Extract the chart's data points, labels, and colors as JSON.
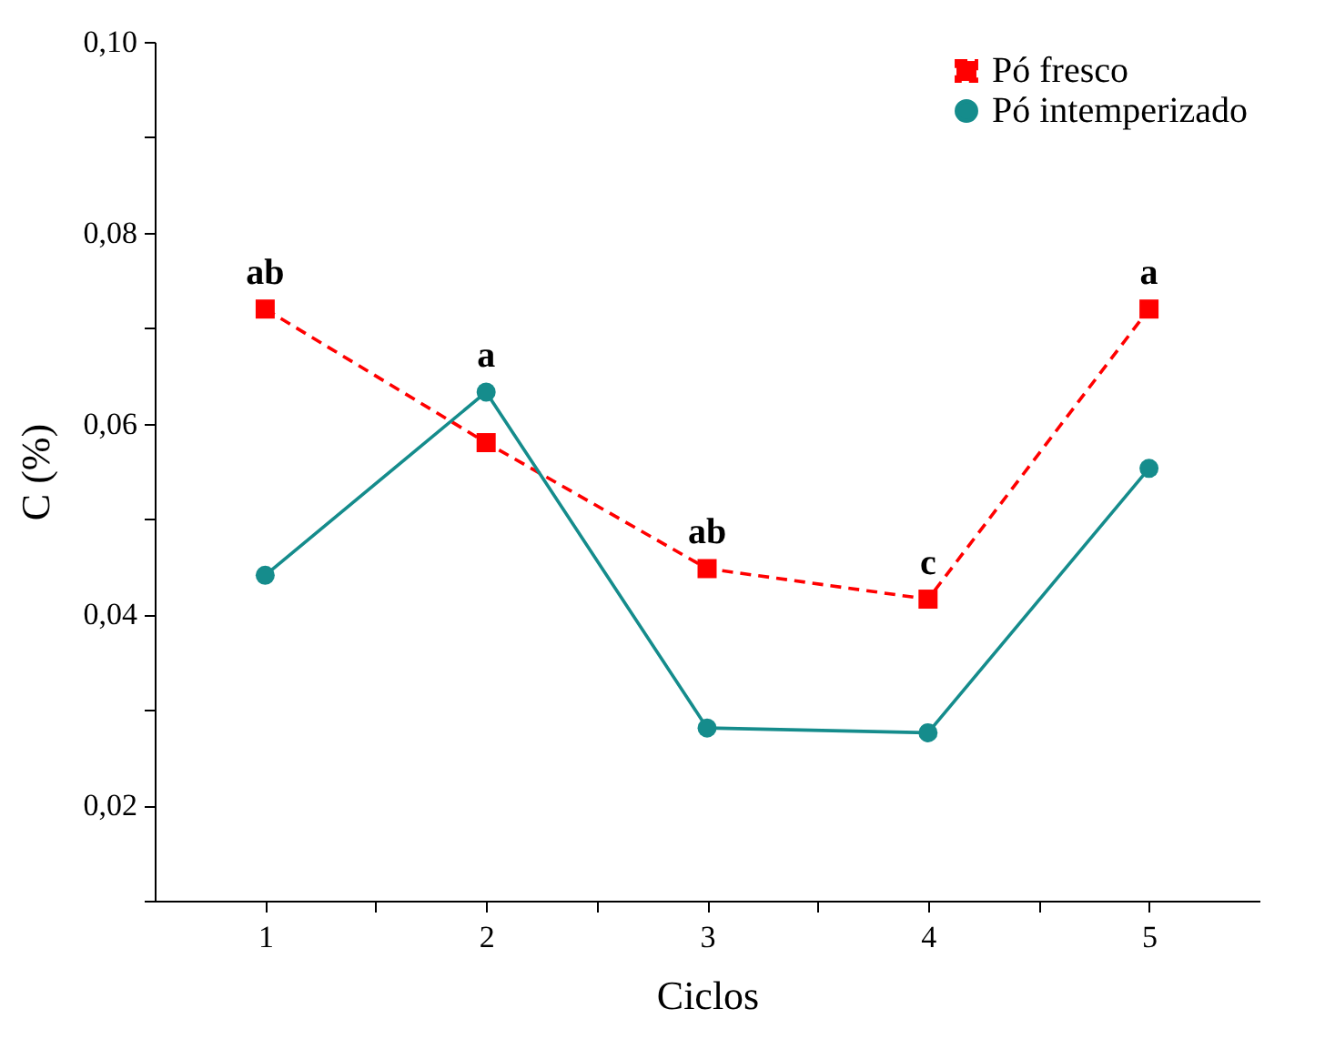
{
  "chart_data": {
    "type": "line",
    "xlabel": "Ciclos",
    "ylabel": "C (%)",
    "x": [
      1,
      2,
      3,
      4,
      5
    ],
    "series": [
      {
        "name": "Pó fresco",
        "color": "#ff0000",
        "values": [
          0.072,
          0.058,
          0.0448,
          0.0416,
          0.072
        ],
        "marker": "square",
        "line_style": "dashed"
      },
      {
        "name": "Pó intemperizado",
        "color": "#158c8c",
        "values": [
          0.0441,
          0.0633,
          0.0281,
          0.0276,
          0.0553
        ],
        "marker": "circle",
        "line_style": "solid"
      }
    ],
    "xlim": [
      0.5,
      5.5
    ],
    "xticks": [
      1,
      {
        "value": 1.5,
        "label": null
      },
      2,
      {
        "value": 2.5,
        "label": null
      },
      3,
      {
        "value": 3.5,
        "label": null
      },
      4,
      {
        "value": 4.5,
        "label": null
      },
      5
    ],
    "ylim": [
      0.01,
      0.1
    ],
    "yticks": [
      {
        "value": 0.01,
        "label": null
      },
      {
        "value": 0.02,
        "label": "0,02"
      },
      {
        "value": 0.03,
        "label": null
      },
      {
        "value": 0.04,
        "label": "0,04"
      },
      {
        "value": 0.05,
        "label": null
      },
      {
        "value": 0.06,
        "label": "0,06"
      },
      {
        "value": 0.07,
        "label": null
      },
      {
        "value": 0.08,
        "label": "0,08"
      },
      {
        "value": 0.09,
        "label": null
      },
      {
        "value": 0.1,
        "label": "0,10"
      }
    ],
    "annotations": [
      {
        "text": "ab",
        "x": 1,
        "y": 0.072
      },
      {
        "text": "a",
        "x": 2,
        "y": 0.0633
      },
      {
        "text": "ab",
        "x": 3,
        "y": 0.0448
      },
      {
        "text": "c",
        "x": 4,
        "y": 0.0416
      },
      {
        "text": "a",
        "x": 5,
        "y": 0.072
      }
    ],
    "grid": false,
    "legend": "top right"
  }
}
